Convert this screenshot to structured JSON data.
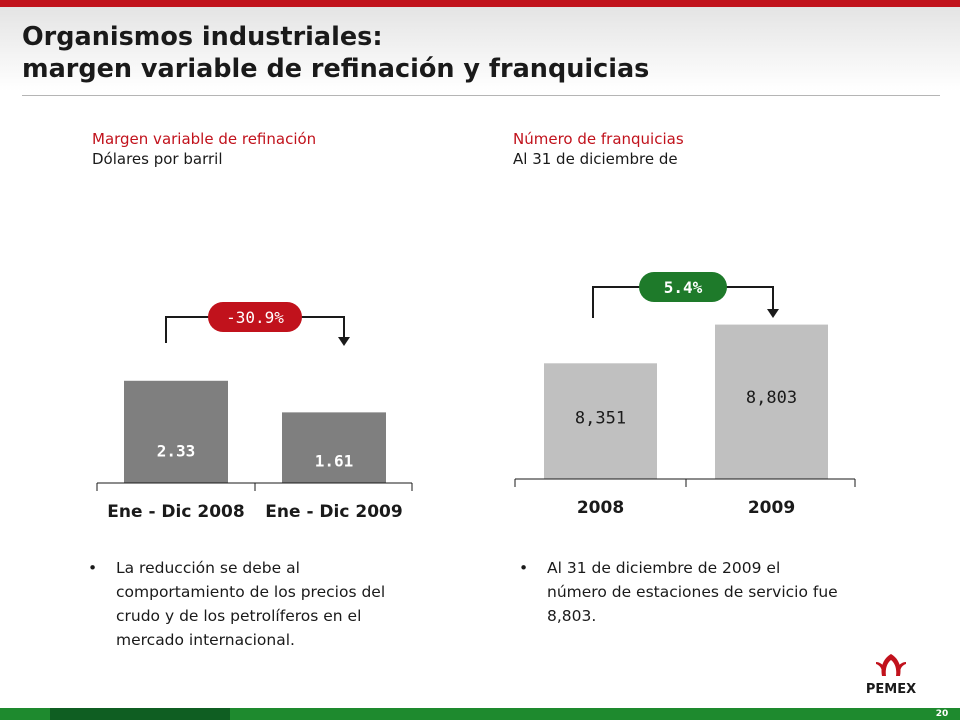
{
  "slide": {
    "title_line1": "Organismos industriales:",
    "title_line2": "margen variable de refinación y franquicias",
    "page_number": "20",
    "logo_text": "PEMEX"
  },
  "left": {
    "heading": "Margen variable de refinación",
    "subheading": "Dólares por barril",
    "change_label": "-30.9%",
    "bullet": "La reducción se debe al comportamiento de los precios del crudo y de los petrolíferos en el mercado internacional."
  },
  "right": {
    "heading": "Número de franquicias",
    "subheading": "Al 31 de diciembre de",
    "change_label": "5.4%",
    "bullet": "Al 31 de diciembre de 2009 el número de estaciones de servicio fue 8,803."
  },
  "colors": {
    "red": "#c1121c",
    "left_bar": "#7f7f7f",
    "right_bar": "#c0c0c0",
    "green": "#1e7a2a",
    "dark": "#1a1a1a"
  },
  "chart_data": [
    {
      "type": "bar",
      "categories": [
        "Ene - Dic 2008",
        "Ene - Dic 2009"
      ],
      "values": [
        2.33,
        1.61
      ],
      "value_labels": [
        "2.33",
        "1.61"
      ],
      "ylim": [
        0,
        3.1
      ],
      "change_label": "-30.9%"
    },
    {
      "type": "bar",
      "categories": [
        "2008",
        "2009"
      ],
      "values": [
        8351,
        8803
      ],
      "value_labels": [
        "8,351",
        "8,803"
      ],
      "ylim": [
        7000,
        8880
      ],
      "change_label": "5.4%"
    }
  ]
}
